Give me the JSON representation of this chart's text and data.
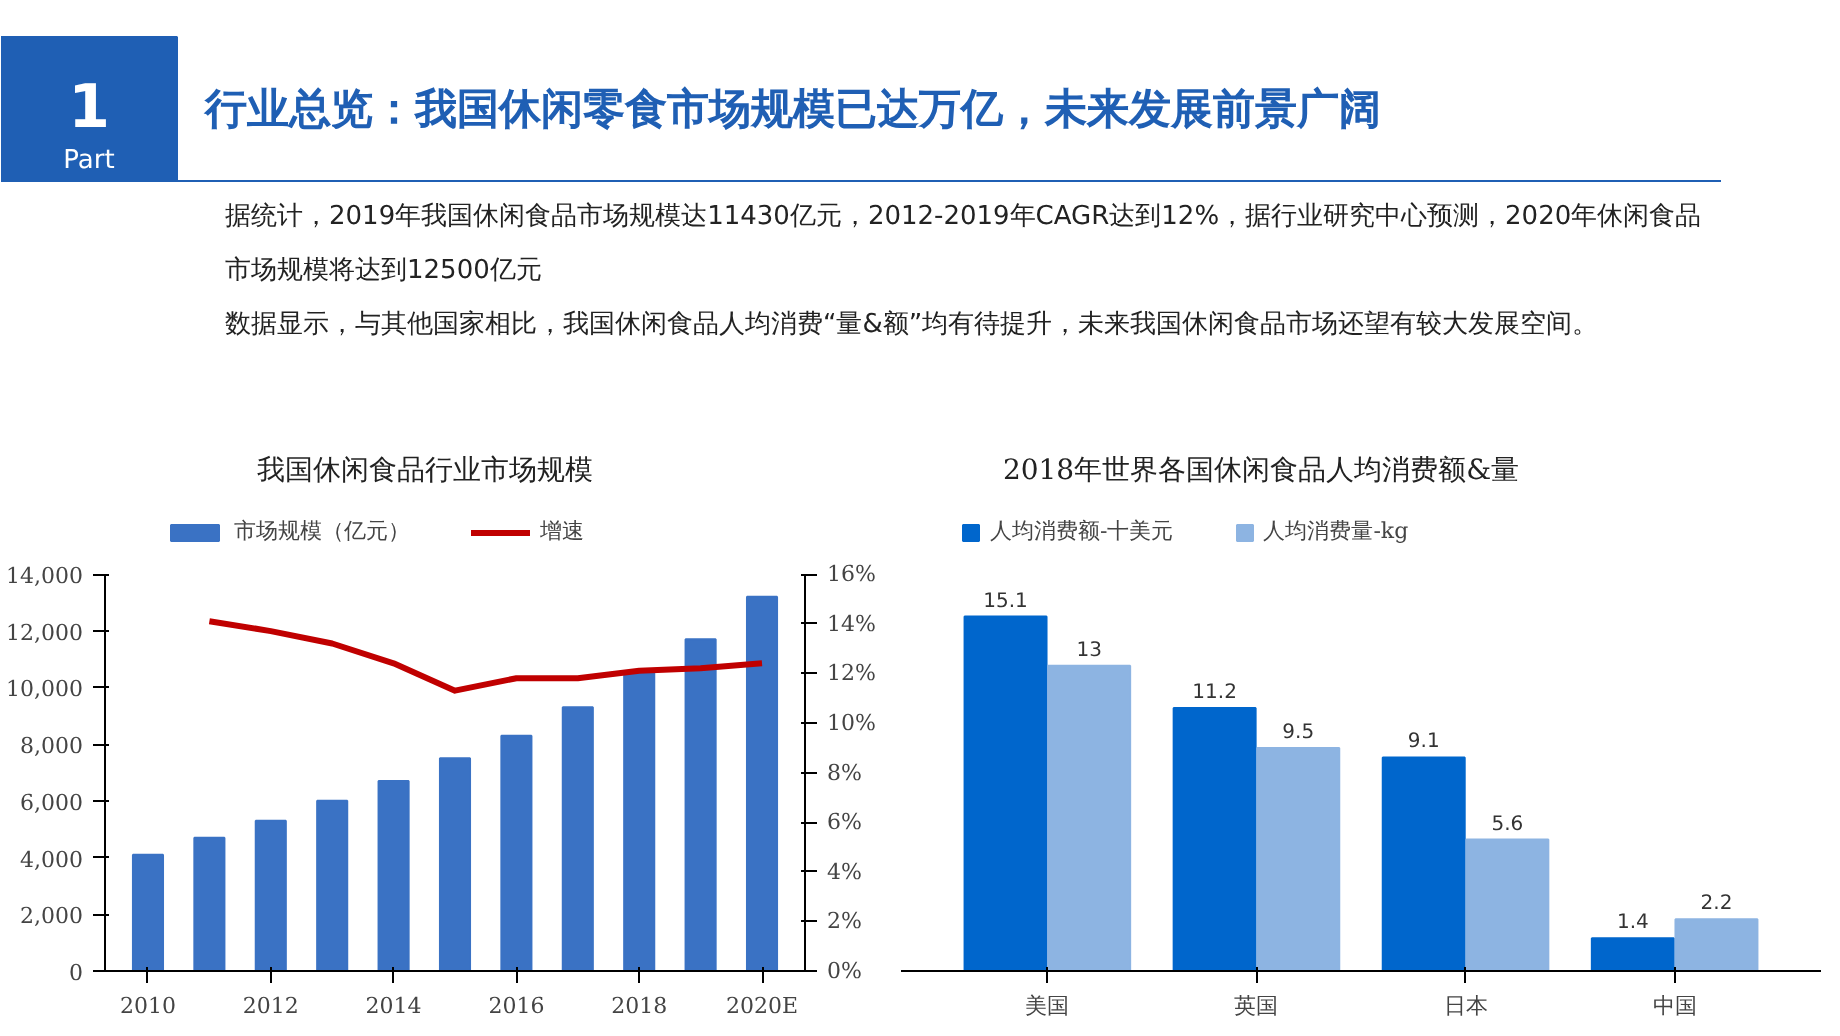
{
  "chart_data": [
    {
      "type": "other",
      "title": "行业总览：我国休闲零食市场规模已达万亿，未来发展前景广阔",
      "annotations": [
        "1",
        "Part",
        "据统计，2019年我国休闲食品市场规模达11430亿元，2012-2019年CAGR达到12%，据行业研究中心预测，2020年休闲食品市场规模将达到12500亿元",
        "数据显示，与其他国家相比，我国休闲食品人均消费“量&额”均有待提升，未来我国休闲食品市场还望有较大发展空间。"
      ]
    },
    {
      "type": "bar",
      "title": "我国休闲食品行业市场规模",
      "categories": [
        "2010",
        null,
        "2012",
        null,
        "2014",
        null,
        "2016",
        null,
        "2018",
        null,
        "2020E"
      ],
      "series": [
        {
          "name": "市场规模（亿元）",
          "type": "bar",
          "color": "#3a72c4",
          "values": [
            4100,
            4700,
            5300,
            6000,
            6700,
            7500,
            8300,
            9300,
            10500,
            11700,
            13200
          ]
        },
        {
          "name": "增速",
          "type": "line",
          "axis": "y2",
          "color": "#c00000",
          "values": [
            null,
            14.1,
            13.7,
            13.2,
            12.4,
            11.3,
            11.8,
            11.8,
            12.1,
            12.2,
            12.4
          ]
        }
      ],
      "ylim": [
        0,
        14000
      ],
      "yticks": [
        {
          "value": 0,
          "label": "0"
        },
        {
          "value": 2000,
          "label": "2,000"
        },
        {
          "value": 4000,
          "label": "4,000"
        },
        {
          "value": 6000,
          "label": "6,000"
        },
        {
          "value": 8000,
          "label": "8,000"
        },
        {
          "value": 10000,
          "label": "10,000"
        },
        {
          "value": 12000,
          "label": "12,000"
        },
        {
          "value": 14000,
          "label": "14,000"
        }
      ],
      "y2lim": [
        0,
        16
      ],
      "y2ticks": [
        {
          "value": 0,
          "label": "0%"
        },
        {
          "value": 2,
          "label": "2%"
        },
        {
          "value": 4,
          "label": "4%"
        },
        {
          "value": 6,
          "label": "6%"
        },
        {
          "value": 8,
          "label": "8%"
        },
        {
          "value": 10,
          "label": "10%"
        },
        {
          "value": 12,
          "label": "12%"
        },
        {
          "value": 14,
          "label": "14%"
        },
        {
          "value": 16,
          "label": "16%"
        }
      ],
      "legend": "top"
    },
    {
      "type": "bar",
      "title": "2018年世界各国休闲食品人均消费额&量",
      "categories": [
        "美国",
        "英国",
        "日本",
        "中国"
      ],
      "series": [
        {
          "name": "人均消费额-十美元",
          "color": "#0066cc",
          "values": [
            15.1,
            11.2,
            9.1,
            1.4
          ]
        },
        {
          "name": "人均消费量-kg",
          "color": "#8db4e2",
          "values": [
            13,
            9.5,
            5.6,
            2.2
          ]
        }
      ],
      "data_labels": true,
      "tick_labels": "x",
      "legend": "top"
    }
  ]
}
